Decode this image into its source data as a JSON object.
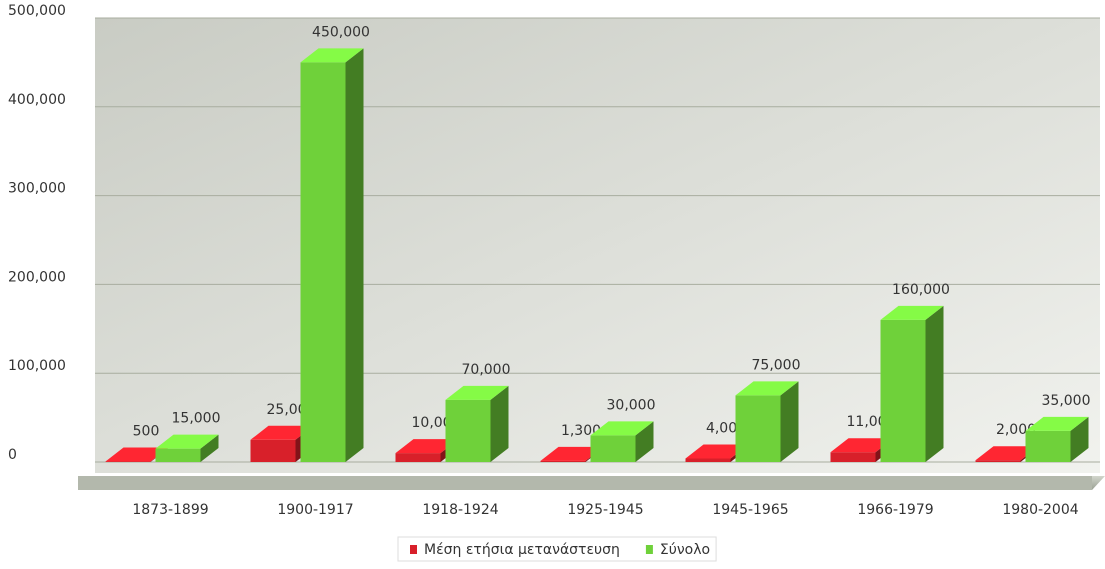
{
  "chart_data": {
    "type": "bar",
    "categories": [
      "1873-1899",
      "1900-1917",
      "1918-1924",
      "1925-1945",
      "1945-1965",
      "1966-1979",
      "1980-2004"
    ],
    "series": [
      {
        "name": "Μέση ετήσια μετανάστευση",
        "color": "#d8202a",
        "values": [
          500,
          25000,
          10000,
          1300,
          4000,
          11000,
          2000
        ],
        "value_labels": [
          "500",
          "25,000",
          "10,000",
          "1,300",
          "4,000",
          "11,000",
          "2,000"
        ]
      },
      {
        "name": "Σύνολο",
        "color": "#6fd13a",
        "values": [
          15000,
          450000,
          70000,
          30000,
          75000,
          160000,
          35000
        ],
        "value_labels": [
          "15,000",
          "450,000",
          "70,000",
          "30,000",
          "75,000",
          "160,000",
          "35,000"
        ]
      }
    ],
    "ylim": [
      0,
      500000
    ],
    "yticks": [
      0,
      {
        "value": 100000,
        "label": "100,000"
      },
      {
        "value": 200000,
        "label": "200,000"
      },
      {
        "value": 300000,
        "label": "300,000"
      },
      {
        "value": 400000,
        "label": "400,000"
      },
      {
        "value": 500000,
        "label": "500,000"
      }
    ],
    "grid": true,
    "legend": "bottom"
  }
}
